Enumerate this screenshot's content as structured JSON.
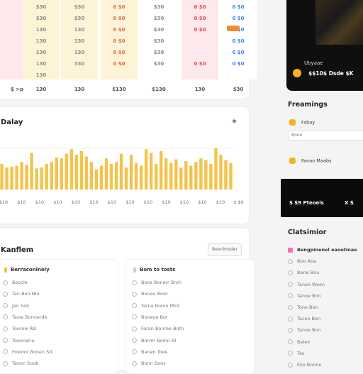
{
  "table": {
    "columns": [
      {
        "bg": "#fde8ec",
        "cells": [
          "",
          "",
          "",
          "",
          "",
          "",
          ""
        ],
        "text_color": "#8b8b8b"
      },
      {
        "bg": "#fdf3d6",
        "cells": [
          "$30",
          "$30",
          "130",
          "130",
          "130",
          "130",
          "130"
        ],
        "text_color": "#8b8b8b"
      },
      {
        "bg": "#fdf3d6",
        "cells": [
          "$30",
          "$30",
          "130",
          "130",
          "130",
          "330",
          ""
        ],
        "text_color": "#8b8b8b"
      },
      {
        "bg": "#fdf3d6",
        "cells": [
          "0 $0",
          "0 $0",
          "0 $0",
          "0 $0",
          "0 $0",
          "0 $0",
          ""
        ],
        "text_color": "#e06b45"
      },
      {
        "bg": "#ffffff",
        "cells": [
          "$30",
          "$30",
          "$30",
          "$30",
          "$30",
          "$30",
          ""
        ],
        "text_color": "#8b8b8b"
      },
      {
        "bg": "#fde8ec",
        "cells": [
          "0 $0",
          "0 $0",
          "0 $0",
          "",
          "",
          "0 $0",
          ""
        ],
        "text_color": "#e05050"
      },
      {
        "bg": "#ffffff",
        "cells": [
          "0 $0",
          "0 $0",
          "0 $0",
          "0 $0",
          "0 $0",
          "0 $0",
          ""
        ],
        "text_color": "#3b82f6"
      }
    ],
    "footer": [
      "$ >p",
      "130",
      "130",
      "$130",
      "$130",
      "130",
      "$30"
    ]
  },
  "chart": {
    "title": "Dalay",
    "menu_icon": "diamond-icon",
    "bar_color": "#f3c34a",
    "chart_data": {
      "type": "bar",
      "values": [
        28,
        24,
        25,
        26,
        30,
        27,
        40,
        23,
        24,
        28,
        30,
        35,
        34,
        39,
        44,
        38,
        42,
        36,
        30,
        22,
        26,
        34,
        28,
        30,
        39,
        24,
        38,
        29,
        26,
        44,
        40,
        28,
        42,
        34,
        29,
        33,
        24,
        31,
        26,
        30,
        34,
        32,
        28,
        45,
        38,
        32,
        29
      ],
      "x_tick_labels": [
        "$10",
        "$10",
        "$10",
        "$10",
        "$10",
        "$10",
        "$10",
        "$10",
        "$10",
        "$10",
        "$10",
        "$10",
        "$10",
        "$ $0"
      ]
    }
  },
  "lower": {
    "title": "Kanflem",
    "button": "Beenlmsder",
    "left_list": {
      "head": "Berraconinely",
      "mark_color": "#f3c34a",
      "items": [
        "Boocle",
        "Tan Bon Nlo",
        "Jan Sok",
        "Taow Bonnerde",
        "Toorow Rol",
        "Toeoneria",
        "Fowoor Bonen Stt",
        "Tanon Soob"
      ]
    },
    "right_list": {
      "head": "Bom to tosts",
      "mark_color": "#cfcfcf",
      "items": [
        "Bons Bonerr Broh",
        "Boneo Boor",
        "Tarna Bomn Mlnt",
        "Boneoe Bor",
        "Faran Bonree Both",
        "Borrm Bomn Bl",
        "Banen Toes",
        "Bonn Bons"
      ]
    }
  },
  "promo": {
    "tag": "Ubyaae",
    "price": "$$10$ Dsde $K"
  },
  "preferences": {
    "title": "Freamings",
    "row1": "Fsbay",
    "input": "Booe",
    "row2": "Fanao Maabs"
  },
  "dark_bar": {
    "label": "$ $9 Pteoeis",
    "close": "X $"
  },
  "categories": {
    "title": "Clatsimior",
    "items": [
      "Bengpinenel eaoetinae",
      "Boo Aba",
      "Bane Bou",
      "Taneo Ween",
      "Tanoe Bon",
      "Tone Bon",
      "Taceo Ben",
      "Tanoe Bon",
      "Baleo",
      "Tso",
      "Eiio Bonne"
    ],
    "accent": "#f472b6"
  }
}
